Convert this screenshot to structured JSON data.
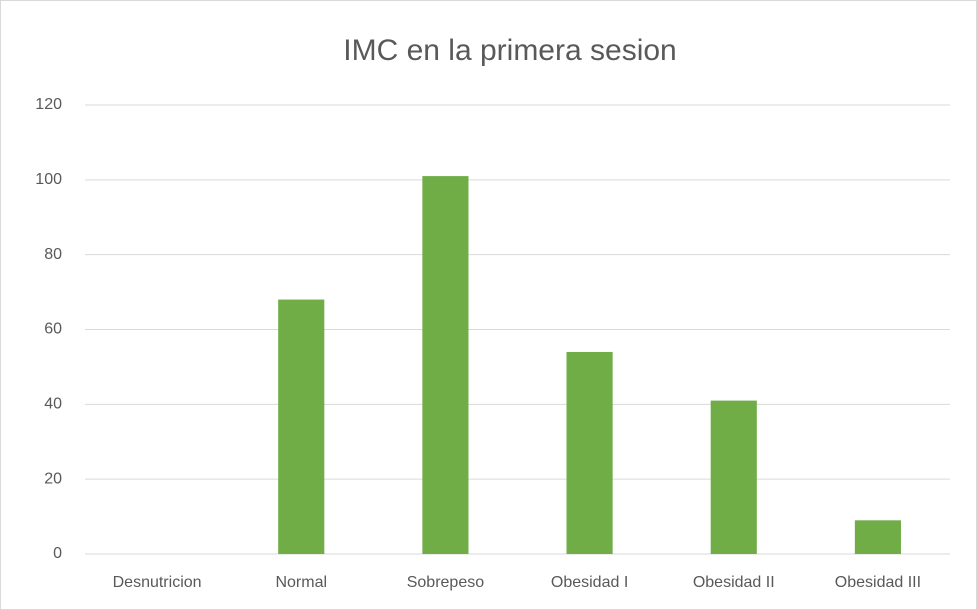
{
  "chart_data": {
    "type": "bar",
    "title": "IMC en la primera sesion",
    "categories": [
      "Desnutricion",
      "Normal",
      "Sobrepeso",
      "Obesidad I",
      "Obesidad II",
      "Obesidad III"
    ],
    "values": [
      0,
      68,
      101,
      54,
      41,
      9
    ],
    "color": "#70ad47",
    "ylim": [
      0,
      120
    ],
    "yticks": [
      0,
      20,
      40,
      60,
      80,
      100,
      120
    ],
    "grid": true
  }
}
